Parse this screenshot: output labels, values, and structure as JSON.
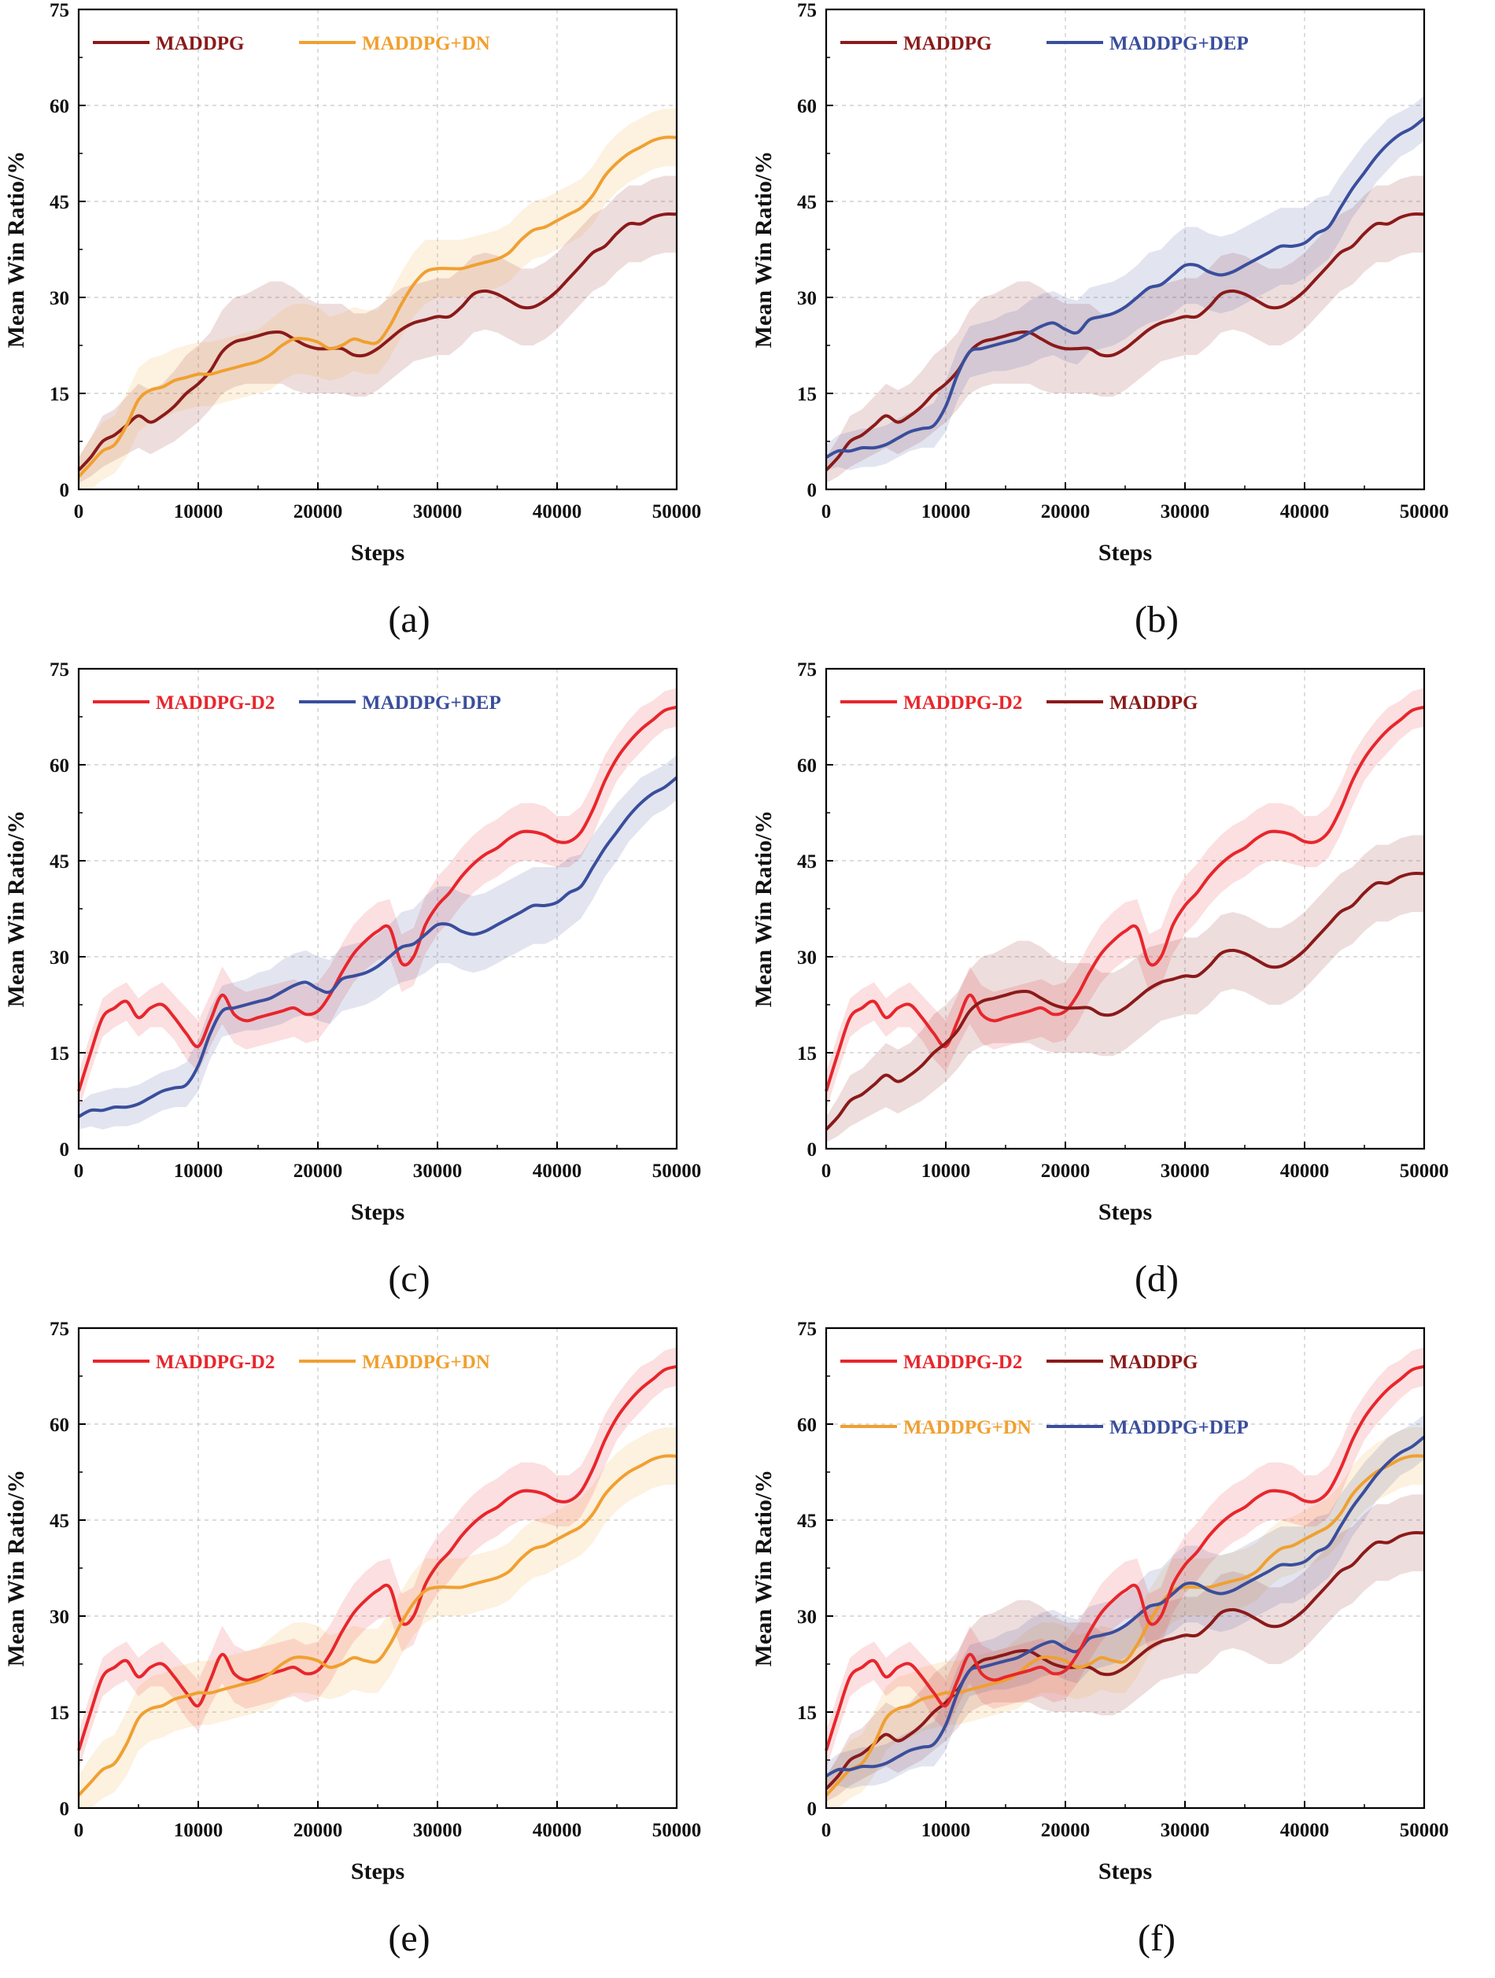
{
  "figure": {
    "common": {
      "xlabel": "Steps",
      "ylabel": "Mean Win Ratio/%",
      "xlim": [
        0,
        50000
      ],
      "ylim": [
        0,
        75
      ],
      "xticks": [
        "0",
        "10000",
        "20000",
        "30000",
        "40000",
        "50000"
      ],
      "yticks": [
        "0",
        "15",
        "30",
        "45",
        "60",
        "75"
      ]
    },
    "colors": {
      "MADDPG": "#8B1A1A",
      "MADDPG+DN": "#F0A030",
      "MADDPG+DEP": "#3A4E9C",
      "MADDPG-D2": "#E8262C"
    }
  },
  "chart_data": [
    {
      "type": "line",
      "panel": "a",
      "caption": "(a)",
      "title": "",
      "xlabel": "Steps",
      "ylabel": "Mean Win Ratio/%",
      "xlim": [
        0,
        50000
      ],
      "ylim": [
        0,
        75
      ],
      "grid": true,
      "legend": "top-left",
      "legend_rows": [
        [
          "MADDPG",
          "MADDPG+DN"
        ]
      ],
      "series": [
        "MADDPG",
        "MADDPG+DN"
      ]
    },
    {
      "type": "line",
      "panel": "b",
      "caption": "(b)",
      "title": "",
      "xlabel": "Steps",
      "ylabel": "Mean Win Ratio/%",
      "xlim": [
        0,
        50000
      ],
      "ylim": [
        0,
        75
      ],
      "grid": true,
      "legend": "top-left",
      "legend_rows": [
        [
          "MADDPG",
          "MADDPG+DEP"
        ]
      ],
      "series": [
        "MADDPG",
        "MADDPG+DEP"
      ]
    },
    {
      "type": "line",
      "panel": "c",
      "caption": "(c)",
      "title": "",
      "xlabel": "Steps",
      "ylabel": "Mean Win Ratio/%",
      "xlim": [
        0,
        50000
      ],
      "ylim": [
        0,
        75
      ],
      "grid": true,
      "legend": "top-left",
      "legend_rows": [
        [
          "MADDPG-D2",
          "MADDPG+DEP"
        ]
      ],
      "series": [
        "MADDPG-D2",
        "MADDPG+DEP"
      ]
    },
    {
      "type": "line",
      "panel": "d",
      "caption": "(d)",
      "title": "",
      "xlabel": "Steps",
      "ylabel": "Mean Win Ratio/%",
      "xlim": [
        0,
        50000
      ],
      "ylim": [
        0,
        75
      ],
      "grid": true,
      "legend": "top-left",
      "legend_rows": [
        [
          "MADDPG-D2",
          "MADDPG"
        ]
      ],
      "series": [
        "MADDPG-D2",
        "MADDPG"
      ]
    },
    {
      "type": "line",
      "panel": "e",
      "caption": "(e)",
      "title": "",
      "xlabel": "Steps",
      "ylabel": "Mean Win Ratio/%",
      "xlim": [
        0,
        50000
      ],
      "ylim": [
        0,
        75
      ],
      "grid": true,
      "legend": "top-left",
      "legend_rows": [
        [
          "MADDPG-D2",
          "MADDPG+DN"
        ]
      ],
      "series": [
        "MADDPG-D2",
        "MADDPG+DN"
      ]
    },
    {
      "type": "line",
      "panel": "f",
      "caption": "(f)",
      "title": "",
      "xlabel": "Steps",
      "ylabel": "Mean Win Ratio/%",
      "xlim": [
        0,
        50000
      ],
      "ylim": [
        0,
        75
      ],
      "grid": true,
      "legend": "top-left",
      "legend_rows": [
        [
          "MADDPG-D2",
          "MADDPG"
        ],
        [
          "MADDPG+DN",
          "MADDPG+DEP"
        ]
      ],
      "series": [
        "MADDPG",
        "MADDPG+DN",
        "MADDPG+DEP",
        "MADDPG-D2"
      ]
    }
  ],
  "series_data": {
    "x": [
      0,
      1000,
      2000,
      3000,
      4000,
      5000,
      6000,
      7000,
      8000,
      9000,
      10000,
      11000,
      12000,
      13000,
      14000,
      15000,
      16000,
      17000,
      18000,
      19000,
      20000,
      21000,
      22000,
      23000,
      24000,
      25000,
      26000,
      27000,
      28000,
      29000,
      30000,
      31000,
      32000,
      33000,
      34000,
      35000,
      36000,
      37000,
      38000,
      39000,
      40000,
      41000,
      42000,
      43000,
      44000,
      45000,
      46000,
      47000,
      48000,
      49000,
      50000
    ],
    "MADDPG": {
      "mean": [
        3,
        5,
        7.5,
        8.5,
        10,
        11.5,
        10.5,
        11.5,
        13,
        15,
        16.5,
        18.5,
        21.5,
        23,
        23.5,
        24,
        24.5,
        24.5,
        23.5,
        22.5,
        22,
        22,
        22,
        21,
        21,
        22,
        23.5,
        25,
        26,
        26.5,
        27,
        27,
        28.5,
        30.5,
        31,
        30.5,
        29.5,
        28.5,
        28.5,
        29.5,
        31,
        33,
        35,
        37,
        38,
        40,
        41.5,
        41.5,
        42.5,
        43,
        43
      ],
      "spread": [
        2,
        3,
        4,
        4,
        4.5,
        5,
        5,
        5,
        5.5,
        6,
        6,
        6,
        6.5,
        7,
        7,
        7.5,
        8,
        8,
        8,
        7.5,
        7,
        7,
        7,
        6.5,
        6.5,
        6.5,
        6.5,
        6.5,
        6,
        6,
        6,
        6,
        6,
        6,
        6,
        6,
        6,
        6,
        6,
        6,
        6,
        6,
        6,
        6,
        6,
        6,
        6,
        6,
        6,
        6,
        6
      ]
    },
    "MADDPG+DN": {
      "mean": [
        2,
        4,
        6,
        7,
        10,
        14,
        15.5,
        16,
        17,
        17.5,
        18,
        18,
        18.5,
        19,
        19.5,
        20,
        21,
        22.5,
        23.5,
        23.5,
        23,
        22,
        22.5,
        23.5,
        23,
        23,
        25.5,
        29,
        32,
        34,
        34.5,
        34.5,
        34.5,
        35,
        35.5,
        36,
        37,
        39,
        40.5,
        41,
        42,
        43,
        44,
        46,
        49,
        51,
        52.5,
        53.5,
        54.5,
        55,
        55
      ],
      "spread": [
        3,
        4,
        4.5,
        4.5,
        5,
        5,
        5,
        5,
        5,
        5,
        5,
        5,
        5,
        5,
        5,
        5,
        5.5,
        5.5,
        5.5,
        5.5,
        5.5,
        5,
        5,
        5,
        5,
        5,
        5,
        5,
        5,
        5,
        4.5,
        4.5,
        4.5,
        4.5,
        4.5,
        4.5,
        4.5,
        4.5,
        4.5,
        4.5,
        4.5,
        4.5,
        4.5,
        4.5,
        4.5,
        4.5,
        4.5,
        4.5,
        4.5,
        4.5,
        4.5
      ]
    },
    "MADDPG+DEP": {
      "mean": [
        5,
        6,
        6,
        6.5,
        6.5,
        7,
        8,
        9,
        9.5,
        10,
        13,
        18,
        21.5,
        22,
        22.5,
        23,
        23.5,
        24.5,
        25.5,
        26,
        25,
        24.5,
        26.5,
        27,
        27.5,
        28.5,
        30,
        31.5,
        32,
        33.5,
        35,
        35,
        34,
        33.5,
        34,
        35,
        36,
        37,
        38,
        38,
        38.5,
        40,
        41,
        44,
        47,
        49.5,
        52,
        54,
        55.5,
        56.5,
        58
      ],
      "spread": [
        2,
        2.5,
        3,
        3,
        3,
        3,
        3,
        3,
        3,
        3.5,
        4,
        4,
        4,
        4,
        4,
        4.5,
        4.5,
        5,
        5,
        5,
        5,
        5,
        5,
        5,
        5,
        5,
        5,
        5.5,
        5.5,
        6,
        6,
        6,
        6,
        6,
        6,
        6,
        6,
        6,
        6,
        6,
        5.5,
        5.5,
        5,
        5,
        4.5,
        4.5,
        4,
        4,
        3.5,
        3.5,
        3.5
      ]
    },
    "MADDPG-D2": {
      "mean": [
        9,
        15,
        20.5,
        22,
        23,
        20.5,
        22,
        22.5,
        20.5,
        18,
        16,
        20,
        24,
        21,
        20,
        20.5,
        21,
        21.5,
        22,
        21,
        21.5,
        24,
        27.5,
        30.5,
        32.5,
        34,
        34.5,
        29,
        30,
        35,
        38,
        40,
        42.5,
        44.5,
        46,
        47,
        48.5,
        49.5,
        49.5,
        49,
        48,
        48,
        49.5,
        53,
        57.5,
        61,
        63.5,
        65.5,
        67,
        68.5,
        69
      ],
      "spread": [
        3,
        3,
        3,
        3,
        3,
        3,
        3,
        3.5,
        3.5,
        4,
        4,
        4,
        4.5,
        4.5,
        4.5,
        4.5,
        4.5,
        4.5,
        4.5,
        4.5,
        4.5,
        4.5,
        4.5,
        4.5,
        4.5,
        4.5,
        4.5,
        4.5,
        4.5,
        4.5,
        4.5,
        4.5,
        4.5,
        4.5,
        4.5,
        4.5,
        4.5,
        4.5,
        4.5,
        4.5,
        4,
        4,
        4,
        4,
        4,
        3.5,
        3.5,
        3.5,
        3,
        3,
        3
      ]
    }
  }
}
